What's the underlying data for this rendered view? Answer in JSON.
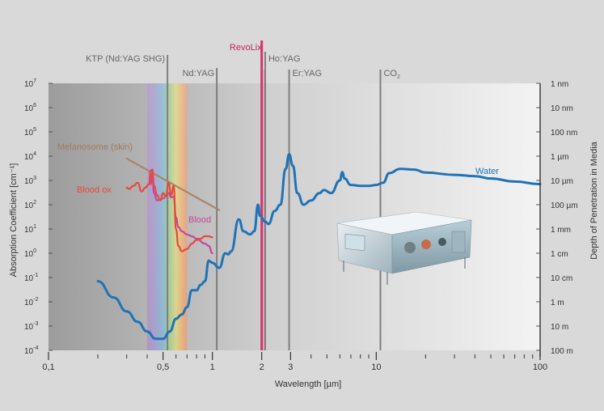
{
  "chart_data": {
    "type": "line",
    "title": "",
    "xlabel": "Wavelength [µm]",
    "ylabel_left": "Absorption Coefficient [cm⁻¹]",
    "ylabel_right": "Depth of Penetration in Media",
    "x_scale": "log",
    "y_scale": "log",
    "xlim": [
      0.1,
      100
    ],
    "ylim": [
      0.0001,
      10000000
    ],
    "x_ticks": [
      {
        "value": 0.1,
        "label": "0,1"
      },
      {
        "value": 0.5,
        "label": "0,5"
      },
      {
        "value": 1,
        "label": "1"
      },
      {
        "value": 2,
        "label": "2"
      },
      {
        "value": 3,
        "label": "3"
      },
      {
        "value": 10,
        "label": "10"
      },
      {
        "value": 100,
        "label": "100"
      }
    ],
    "x_minor_ticks": [
      0.2,
      0.3,
      0.4,
      0.6,
      0.7,
      0.8,
      0.9,
      4,
      5,
      6,
      7,
      8,
      9,
      20,
      30,
      40,
      50,
      60,
      70,
      80,
      90
    ],
    "y_ticks_left": [
      {
        "exp": 7,
        "base": "10",
        "sup": "7"
      },
      {
        "exp": 6,
        "base": "10",
        "sup": "6"
      },
      {
        "exp": 5,
        "base": "10",
        "sup": "5"
      },
      {
        "exp": 4,
        "base": "10",
        "sup": "4"
      },
      {
        "exp": 3,
        "base": "10",
        "sup": "3"
      },
      {
        "exp": 2,
        "base": "10",
        "sup": "2"
      },
      {
        "exp": 1,
        "base": "10",
        "sup": "1"
      },
      {
        "exp": 0,
        "base": "10",
        "sup": "0"
      },
      {
        "exp": -1,
        "base": "10",
        "sup": "-1"
      },
      {
        "exp": -2,
        "base": "10",
        "sup": "-2"
      },
      {
        "exp": -3,
        "base": "10",
        "sup": "-3"
      },
      {
        "exp": -4,
        "base": "10",
        "sup": "-4"
      }
    ],
    "y_ticks_right": [
      {
        "exp": 7,
        "label": "1 nm"
      },
      {
        "exp": 6,
        "label": "10 nm"
      },
      {
        "exp": 5,
        "label": "100 nm"
      },
      {
        "exp": 4,
        "label": "1 µm"
      },
      {
        "exp": 3,
        "label": "10 µm"
      },
      {
        "exp": 2,
        "label": "100 µm"
      },
      {
        "exp": 1,
        "label": "1 mm"
      },
      {
        "exp": 0,
        "label": "1 cm"
      },
      {
        "exp": -1,
        "label": "10 cm"
      },
      {
        "exp": -2,
        "label": "1 m"
      },
      {
        "exp": -3,
        "label": "10 m"
      },
      {
        "exp": -4,
        "label": "100 m"
      }
    ],
    "visible_spectrum": {
      "from": 0.4,
      "to": 0.7
    },
    "lasers": [
      {
        "name": "KTP (Nd:YAG SHG)",
        "wavelength": 0.532,
        "color": "#7f7f7f"
      },
      {
        "name": "Nd:YAG",
        "wavelength": 1.064,
        "color": "#7f7f7f"
      },
      {
        "name": "RevoLix",
        "wavelength": 2.0,
        "color": "#d6336c"
      },
      {
        "name": "Ho:YAG",
        "wavelength": 2.1,
        "color": "#7f7f7f"
      },
      {
        "name": "Er:YAG",
        "wavelength": 2.94,
        "color": "#7f7f7f"
      },
      {
        "name": "CO",
        "sub": "2",
        "wavelength": 10.6,
        "color": "#7f7f7f"
      }
    ],
    "series": [
      {
        "name": "Water",
        "color": "#1f73b7",
        "points": [
          [
            0.2,
            0.07
          ],
          [
            0.25,
            0.015
          ],
          [
            0.3,
            0.004
          ],
          [
            0.35,
            0.0015
          ],
          [
            0.4,
            0.0006
          ],
          [
            0.45,
            0.0003
          ],
          [
            0.5,
            0.0003
          ],
          [
            0.55,
            0.0006
          ],
          [
            0.6,
            0.002
          ],
          [
            0.65,
            0.003
          ],
          [
            0.7,
            0.006
          ],
          [
            0.75,
            0.03
          ],
          [
            0.8,
            0.03
          ],
          [
            0.85,
            0.05
          ],
          [
            0.9,
            0.07
          ],
          [
            0.95,
            0.5
          ],
          [
            0.97,
            0.45
          ],
          [
            1.0,
            0.4
          ],
          [
            1.1,
            0.25
          ],
          [
            1.2,
            1.0
          ],
          [
            1.25,
            0.9
          ],
          [
            1.3,
            1.2
          ],
          [
            1.45,
            25
          ],
          [
            1.55,
            8
          ],
          [
            1.7,
            6
          ],
          [
            1.8,
            8
          ],
          [
            1.9,
            100
          ],
          [
            1.95,
            35
          ],
          [
            2.1,
            20
          ],
          [
            2.2,
            16
          ],
          [
            2.4,
            55
          ],
          [
            2.6,
            100
          ],
          [
            2.8,
            3000
          ],
          [
            2.94,
            12000
          ],
          [
            3.1,
            4000
          ],
          [
            3.3,
            300
          ],
          [
            3.6,
            100
          ],
          [
            4.0,
            150
          ],
          [
            4.5,
            300
          ],
          [
            4.8,
            400
          ],
          [
            5.3,
            300
          ],
          [
            6.0,
            1000
          ],
          [
            6.2,
            2200
          ],
          [
            6.4,
            1200
          ],
          [
            7,
            650
          ],
          [
            8,
            600
          ],
          [
            9,
            600
          ],
          [
            10,
            650
          ],
          [
            11,
            800
          ],
          [
            12,
            2000
          ],
          [
            14,
            3000
          ],
          [
            17,
            2800
          ],
          [
            20,
            2100
          ],
          [
            30,
            1700
          ],
          [
            40,
            1500
          ],
          [
            50,
            1200
          ],
          [
            70,
            900
          ],
          [
            100,
            700
          ]
        ]
      },
      {
        "name": "Blood ox",
        "color": "#e8483c",
        "points": [
          [
            0.3,
            500
          ],
          [
            0.31,
            450
          ],
          [
            0.33,
            600
          ],
          [
            0.35,
            800
          ],
          [
            0.37,
            350
          ],
          [
            0.39,
            500
          ],
          [
            0.41,
            700
          ],
          [
            0.42,
            2500
          ],
          [
            0.43,
            2800
          ],
          [
            0.44,
            600
          ],
          [
            0.46,
            250
          ],
          [
            0.48,
            150
          ],
          [
            0.5,
            300
          ],
          [
            0.52,
            220
          ],
          [
            0.54,
            800
          ],
          [
            0.56,
            250
          ],
          [
            0.58,
            600
          ],
          [
            0.6,
            10
          ],
          [
            0.62,
            2
          ],
          [
            0.65,
            1.2
          ],
          [
            0.7,
            1.5
          ],
          [
            0.75,
            2.5
          ],
          [
            0.8,
            3.5
          ],
          [
            0.85,
            4
          ],
          [
            0.9,
            5
          ],
          [
            0.95,
            5
          ],
          [
            1.0,
            4.5
          ]
        ]
      },
      {
        "name": "Blood",
        "color": "#c7459b",
        "points": [
          [
            0.42,
            700
          ],
          [
            0.43,
            2000
          ],
          [
            0.44,
            300
          ],
          [
            0.46,
            150
          ],
          [
            0.5,
            180
          ],
          [
            0.54,
            300
          ],
          [
            0.56,
            200
          ],
          [
            0.58,
            220
          ],
          [
            0.6,
            30
          ],
          [
            0.62,
            12
          ],
          [
            0.65,
            8
          ],
          [
            0.7,
            6
          ],
          [
            0.75,
            5
          ],
          [
            0.8,
            4
          ],
          [
            0.9,
            2.5
          ],
          [
            0.95,
            2
          ],
          [
            1.0,
            1.0
          ]
        ]
      },
      {
        "name": "Melanosome (skin)",
        "color": "#a88568",
        "points": [
          [
            0.3,
            8000
          ],
          [
            1.1,
            60
          ]
        ]
      }
    ]
  }
}
